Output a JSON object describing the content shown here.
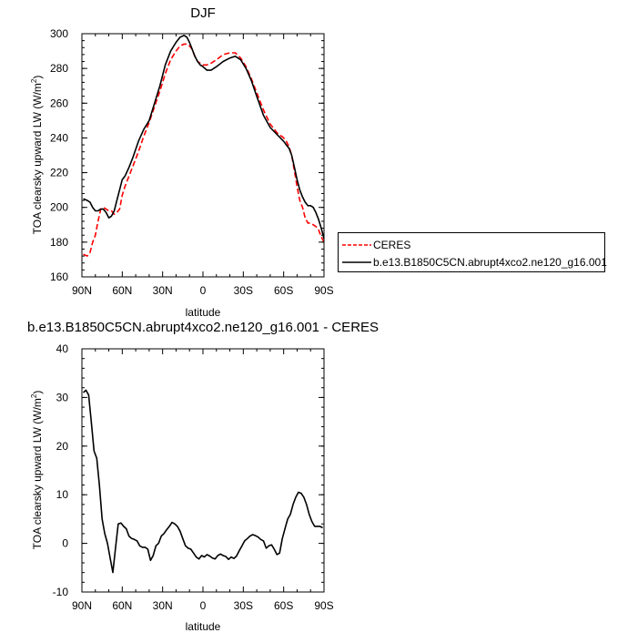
{
  "chart_data": [
    {
      "type": "line",
      "title": "DJF",
      "xlabel": "latitude",
      "ylabel": "TOA clearsky upward LW (W/m",
      "ylabel_sup": "2",
      "ylabel_close": ")",
      "xlim": [
        90,
        -90
      ],
      "ylim": [
        160,
        300
      ],
      "xticks": [
        90,
        60,
        30,
        0,
        -30,
        -60,
        -90
      ],
      "xtick_labels": [
        "90N",
        "60N",
        "30N",
        "0",
        "30S",
        "60S",
        "90S"
      ],
      "yticks": [
        160,
        180,
        200,
        220,
        240,
        260,
        280,
        300
      ],
      "ytick_labels": [
        "160",
        "180",
        "200",
        "220",
        "240",
        "260",
        "280",
        "300"
      ],
      "grid": false,
      "legend_position": "outside-right",
      "series": [
        {
          "name": "CERES",
          "color": "#ff0000",
          "dash": true,
          "x": [
            89,
            86,
            84,
            82,
            80,
            78,
            76,
            74,
            72,
            70,
            68,
            66,
            64,
            62,
            60,
            58,
            55,
            52,
            48,
            44,
            40,
            36,
            32,
            28,
            24,
            20,
            17,
            14,
            12,
            10,
            8,
            6,
            4,
            2,
            0,
            -3,
            -6,
            -10,
            -15,
            -20,
            -24,
            -28,
            -32,
            -36,
            -40,
            -45,
            -50,
            -55,
            -60,
            -62,
            -64,
            -66,
            -68,
            -70,
            -72,
            -74,
            -76,
            -78,
            -80,
            -82,
            -84,
            -86,
            -88,
            -90
          ],
          "y": [
            173,
            172,
            174,
            180,
            184,
            192,
            199,
            200,
            199,
            198,
            198,
            196,
            197,
            199,
            207,
            212,
            218,
            224,
            232,
            241,
            249,
            258,
            267,
            277,
            285,
            290,
            293,
            294,
            294,
            293,
            291,
            287,
            284,
            283,
            282,
            282,
            283,
            285,
            288,
            289,
            289,
            286,
            281,
            274,
            266,
            256,
            248,
            243,
            240,
            238,
            235,
            230,
            221,
            212,
            204,
            200,
            194,
            191,
            191,
            190,
            189,
            187,
            183,
            180
          ]
        },
        {
          "name": "b.e13.B1850C5CN.abrupt4xco2.ne120_g16.001",
          "color": "#000000",
          "dash": false,
          "x": [
            89,
            86,
            84,
            82,
            80,
            78,
            76,
            74,
            72,
            70,
            68,
            66,
            64,
            62,
            60,
            58,
            55,
            52,
            48,
            44,
            40,
            36,
            32,
            28,
            24,
            20,
            17,
            14,
            12,
            10,
            8,
            6,
            4,
            2,
            0,
            -3,
            -6,
            -10,
            -15,
            -20,
            -24,
            -28,
            -32,
            -36,
            -40,
            -45,
            -50,
            -55,
            -60,
            -62,
            -64,
            -66,
            -68,
            -70,
            -72,
            -74,
            -76,
            -78,
            -80,
            -82,
            -84,
            -86,
            -88,
            -90
          ],
          "y": [
            205,
            204,
            203,
            200,
            198,
            198,
            199,
            199,
            197,
            194,
            195,
            198,
            204,
            210,
            216,
            218,
            223,
            229,
            238,
            245,
            250,
            260,
            270,
            282,
            290,
            295,
            298,
            299,
            298,
            295,
            291,
            287,
            284,
            282,
            281,
            279,
            279,
            281,
            284,
            286,
            287,
            285,
            280,
            273,
            264,
            253,
            246,
            242,
            238,
            236,
            234,
            230,
            223,
            216,
            210,
            206,
            203,
            201,
            201,
            200,
            197,
            193,
            188,
            182
          ]
        }
      ]
    },
    {
      "type": "line",
      "title": "b.e13.B1850C5CN.abrupt4xco2.ne120_g16.001 - CERES",
      "xlabel": "latitude",
      "ylabel": "TOA clearsky upward LW (W/m",
      "ylabel_sup": "2",
      "ylabel_close": ")",
      "xlim": [
        90,
        -90
      ],
      "ylim": [
        -10,
        40
      ],
      "xticks": [
        90,
        60,
        30,
        0,
        -30,
        -60,
        -90
      ],
      "xtick_labels": [
        "90N",
        "60N",
        "30N",
        "0",
        "30S",
        "60S",
        "90S"
      ],
      "yticks": [
        -10,
        0,
        10,
        20,
        30,
        40
      ],
      "ytick_labels": [
        "-10",
        "0",
        "10",
        "20",
        "30",
        "40"
      ],
      "grid": false,
      "series": [
        {
          "color": "#000000",
          "dash": false,
          "x": [
            89,
            87,
            85,
            83,
            81,
            79,
            77,
            75,
            73,
            71,
            69,
            67,
            65,
            63,
            61,
            59,
            57,
            55,
            53,
            51,
            49,
            47,
            45,
            43,
            41,
            39,
            37,
            35,
            33,
            31,
            29,
            27,
            25,
            23,
            21,
            19,
            17,
            15,
            13,
            11,
            9,
            7,
            5,
            3,
            1,
            -1,
            -3,
            -5,
            -7,
            -9,
            -11,
            -13,
            -15,
            -17,
            -19,
            -21,
            -23,
            -25,
            -27,
            -29,
            -31,
            -33,
            -35,
            -37,
            -39,
            -41,
            -43,
            -45,
            -47,
            -49,
            -51,
            -53,
            -55,
            -57,
            -59,
            -61,
            -63,
            -65,
            -67,
            -69,
            -71,
            -73,
            -75,
            -77,
            -79,
            -81,
            -83,
            -85,
            -87,
            -89
          ],
          "y": [
            31,
            31.5,
            30.5,
            25,
            19,
            17.5,
            12,
            5,
            2,
            0,
            -3,
            -6,
            -1,
            4,
            4.2,
            3.5,
            3,
            1.5,
            1,
            0.8,
            0.5,
            -0.5,
            -0.8,
            -0.8,
            -1.2,
            -3.5,
            -2.5,
            -0.5,
            0,
            1.5,
            2,
            2.8,
            3.5,
            4.3,
            4,
            3.5,
            2.5,
            1,
            -0.5,
            -1,
            -1.2,
            -2,
            -2.8,
            -3.2,
            -2.5,
            -2.8,
            -2.3,
            -2.6,
            -3,
            -3.2,
            -2.5,
            -2.2,
            -2.5,
            -2.7,
            -3.3,
            -2.8,
            -3.1,
            -2.6,
            -1.5,
            -0.5,
            0.5,
            1,
            1.5,
            1.8,
            1.6,
            1.3,
            0.8,
            0.5,
            -1,
            -0.5,
            -0.3,
            -1.2,
            -2.3,
            -2,
            1,
            3,
            5,
            6,
            8,
            9.5,
            10.5,
            10.3,
            9.5,
            8,
            6,
            4.5,
            3.5,
            3.5,
            3.5,
            3.2
          ]
        }
      ]
    }
  ]
}
